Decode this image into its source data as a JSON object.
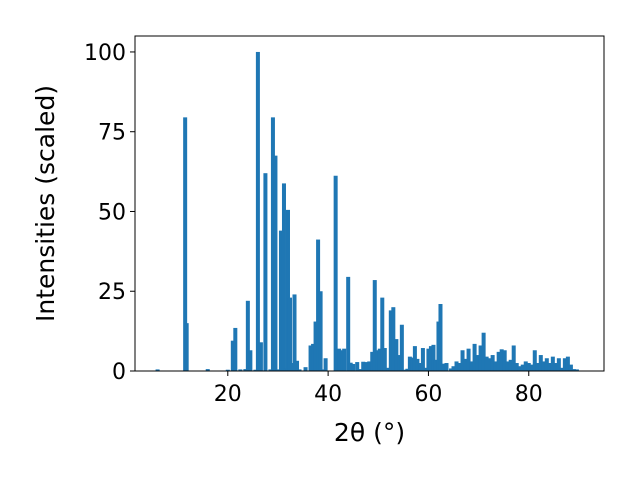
{
  "chart_data": {
    "type": "bar",
    "xlabel": "2θ (°)",
    "ylabel": "Intensities (scaled)",
    "title": "",
    "xlim": [
      1.5,
      95
    ],
    "ylim": [
      0,
      105
    ],
    "xticks": [
      20,
      40,
      60,
      80
    ],
    "yticks": [
      0,
      25,
      50,
      75,
      100
    ],
    "grid": false,
    "bar_width": 0.8,
    "color": "#1f77b4",
    "points": [
      [
        6.0,
        0.5
      ],
      [
        11.5,
        79.5
      ],
      [
        11.8,
        15
      ],
      [
        16.0,
        0.6
      ],
      [
        20.0,
        0.4
      ],
      [
        21.0,
        9.5
      ],
      [
        21.5,
        13.5
      ],
      [
        22.5,
        0.5
      ],
      [
        23.5,
        0.6
      ],
      [
        24.0,
        22
      ],
      [
        24.5,
        6.5
      ],
      [
        25.5,
        0.4
      ],
      [
        26.0,
        100
      ],
      [
        26.6,
        9
      ],
      [
        27.5,
        62
      ],
      [
        28.5,
        0.5
      ],
      [
        29.0,
        79.5
      ],
      [
        29.5,
        67.5
      ],
      [
        30.0,
        0.5
      ],
      [
        30.6,
        44
      ],
      [
        31.2,
        58.8
      ],
      [
        31.6,
        0.8
      ],
      [
        32.0,
        50.5
      ],
      [
        32.4,
        23
      ],
      [
        32.8,
        2.5
      ],
      [
        33.3,
        24
      ],
      [
        33.8,
        3.2
      ],
      [
        34.3,
        0.5
      ],
      [
        35.5,
        1.2
      ],
      [
        36.5,
        8
      ],
      [
        37.0,
        8.5
      ],
      [
        37.5,
        15.5
      ],
      [
        38.0,
        41.2
      ],
      [
        38.5,
        25
      ],
      [
        39.0,
        0.5
      ],
      [
        39.5,
        4
      ],
      [
        41.5,
        61.2
      ],
      [
        42.2,
        7
      ],
      [
        42.8,
        6.5
      ],
      [
        43.2,
        7
      ],
      [
        44.0,
        29.5
      ],
      [
        44.5,
        2.6
      ],
      [
        45.0,
        2.2
      ],
      [
        45.8,
        2.8
      ],
      [
        46.5,
        0.6
      ],
      [
        47.0,
        2.9
      ],
      [
        47.6,
        2.8
      ],
      [
        48.2,
        3
      ],
      [
        48.8,
        6
      ],
      [
        49.3,
        28.5
      ],
      [
        49.8,
        6.5
      ],
      [
        50.3,
        7
      ],
      [
        50.8,
        23
      ],
      [
        51.3,
        7.2
      ],
      [
        52.0,
        1
      ],
      [
        52.5,
        19
      ],
      [
        53.0,
        20
      ],
      [
        53.6,
        10
      ],
      [
        54.2,
        5
      ],
      [
        54.7,
        14.5
      ],
      [
        55.3,
        0.4
      ],
      [
        55.8,
        0.7
      ],
      [
        56.3,
        4.5
      ],
      [
        56.8,
        4.2
      ],
      [
        57.3,
        7.8
      ],
      [
        57.8,
        3.8
      ],
      [
        58.4,
        2.5
      ],
      [
        58.9,
        7.2
      ],
      [
        59.4,
        1
      ],
      [
        60.0,
        7
      ],
      [
        60.5,
        7.8
      ],
      [
        61.0,
        8.2
      ],
      [
        61.5,
        3.5
      ],
      [
        62.0,
        15.5
      ],
      [
        62.4,
        21
      ],
      [
        63.0,
        2.3
      ],
      [
        63.6,
        2.5
      ],
      [
        64.5,
        0.8
      ],
      [
        65.0,
        1.5
      ],
      [
        65.6,
        3
      ],
      [
        66.2,
        2.5
      ],
      [
        66.8,
        6.5
      ],
      [
        67.4,
        3.8
      ],
      [
        68.0,
        7
      ],
      [
        68.6,
        3
      ],
      [
        69.2,
        8.5
      ],
      [
        69.8,
        5
      ],
      [
        70.4,
        8
      ],
      [
        71.0,
        12
      ],
      [
        71.6,
        4.5
      ],
      [
        72.2,
        4
      ],
      [
        72.8,
        5
      ],
      [
        73.4,
        3
      ],
      [
        74.0,
        6
      ],
      [
        74.6,
        6.8
      ],
      [
        75.2,
        6.5
      ],
      [
        75.8,
        3
      ],
      [
        76.4,
        3.5
      ],
      [
        77.0,
        8
      ],
      [
        77.6,
        2.5
      ],
      [
        78.2,
        1.5
      ],
      [
        78.8,
        2
      ],
      [
        79.4,
        3
      ],
      [
        80.0,
        2.5
      ],
      [
        80.6,
        2
      ],
      [
        81.2,
        6.5
      ],
      [
        81.8,
        2.5
      ],
      [
        82.4,
        5
      ],
      [
        83.0,
        3
      ],
      [
        83.6,
        4
      ],
      [
        84.2,
        2.5
      ],
      [
        84.8,
        4.5
      ],
      [
        85.4,
        2.5
      ],
      [
        86.0,
        4
      ],
      [
        86.6,
        1
      ],
      [
        87.2,
        4
      ],
      [
        87.8,
        4.5
      ],
      [
        88.4,
        2
      ],
      [
        89.0,
        0.6
      ],
      [
        89.6,
        0.5
      ]
    ]
  }
}
